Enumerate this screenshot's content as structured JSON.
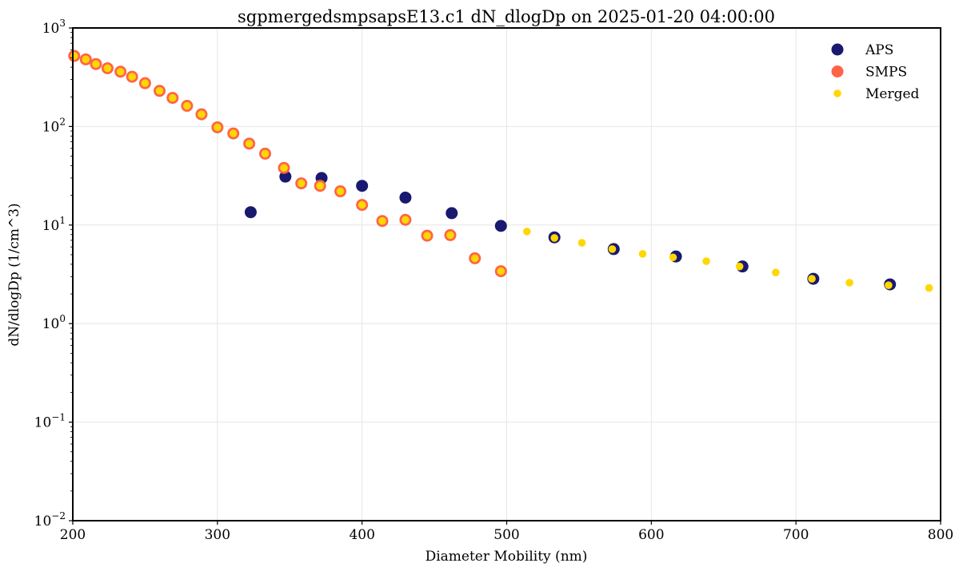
{
  "chart_data": {
    "type": "scatter",
    "title": "sgpmergedsmpsapsE13.c1 dN_dlogDp on 2025-01-20 04:00:00",
    "xlabel": "Diameter Mobility (nm)",
    "ylabel": "dN/dlogDp (1/cm^3)",
    "xlim": [
      200,
      800
    ],
    "ylim": [
      0.01,
      1000
    ],
    "yscale": "log",
    "x_ticks": [
      200,
      300,
      400,
      500,
      600,
      700,
      800
    ],
    "y_ticks": [
      {
        "base": "10",
        "exp": "−2",
        "value": 0.01
      },
      {
        "base": "10",
        "exp": "−1",
        "value": 0.1
      },
      {
        "base": "10",
        "exp": "0",
        "value": 1
      },
      {
        "base": "10",
        "exp": "1",
        "value": 10
      },
      {
        "base": "10",
        "exp": "2",
        "value": 100
      },
      {
        "base": "10",
        "exp": "3",
        "value": 1000
      }
    ],
    "grid": true,
    "legend_position": "top-right",
    "series": [
      {
        "name": "APS",
        "color": "#191970",
        "marker": "filled-circle",
        "points": [
          [
            323,
            13.5
          ],
          [
            347,
            31
          ],
          [
            372,
            30
          ],
          [
            400,
            25
          ],
          [
            430,
            19
          ],
          [
            462,
            13.2
          ],
          [
            496,
            9.8
          ],
          [
            533,
            7.5
          ],
          [
            574,
            5.7
          ],
          [
            617,
            4.8
          ],
          [
            663,
            3.8
          ],
          [
            712,
            2.85
          ],
          [
            765,
            2.5
          ]
        ]
      },
      {
        "name": "SMPS",
        "color": "#FF6347",
        "marker": "filled-circle",
        "points": [
          [
            201,
            520
          ],
          [
            209,
            480
          ],
          [
            216,
            430
          ],
          [
            224,
            390
          ],
          [
            233,
            360
          ],
          [
            241,
            320
          ],
          [
            250,
            275
          ],
          [
            260,
            230
          ],
          [
            269,
            195
          ],
          [
            279,
            162
          ],
          [
            289,
            133
          ],
          [
            300,
            98
          ],
          [
            311,
            85
          ],
          [
            322,
            67
          ],
          [
            333,
            53
          ],
          [
            346,
            38
          ],
          [
            358,
            26.5
          ],
          [
            371,
            25
          ],
          [
            385,
            22
          ],
          [
            400,
            16
          ],
          [
            414,
            11
          ],
          [
            430,
            11.3
          ],
          [
            445,
            7.8
          ],
          [
            461,
            7.9
          ],
          [
            478,
            4.6
          ],
          [
            496,
            3.4
          ]
        ]
      },
      {
        "name": "Merged",
        "color": "#FFD700",
        "marker": "small-filled-circle",
        "points": [
          [
            201,
            520
          ],
          [
            209,
            480
          ],
          [
            216,
            430
          ],
          [
            224,
            390
          ],
          [
            233,
            360
          ],
          [
            241,
            320
          ],
          [
            250,
            275
          ],
          [
            260,
            230
          ],
          [
            269,
            195
          ],
          [
            279,
            162
          ],
          [
            289,
            133
          ],
          [
            300,
            98
          ],
          [
            311,
            85
          ],
          [
            322,
            67
          ],
          [
            333,
            53
          ],
          [
            346,
            38
          ],
          [
            358,
            26.5
          ],
          [
            371,
            25
          ],
          [
            385,
            22
          ],
          [
            400,
            16
          ],
          [
            414,
            11
          ],
          [
            430,
            11.3
          ],
          [
            445,
            7.8
          ],
          [
            461,
            7.9
          ],
          [
            478,
            4.6
          ],
          [
            496,
            3.4
          ],
          [
            514,
            8.6
          ],
          [
            533,
            7.4
          ],
          [
            552,
            6.6
          ],
          [
            573,
            5.7
          ],
          [
            594,
            5.1
          ],
          [
            615,
            4.7
          ],
          [
            638,
            4.3
          ],
          [
            661,
            3.8
          ],
          [
            686,
            3.3
          ],
          [
            711,
            2.85
          ],
          [
            737,
            2.6
          ],
          [
            764,
            2.45
          ],
          [
            792,
            2.3
          ]
        ]
      }
    ]
  }
}
